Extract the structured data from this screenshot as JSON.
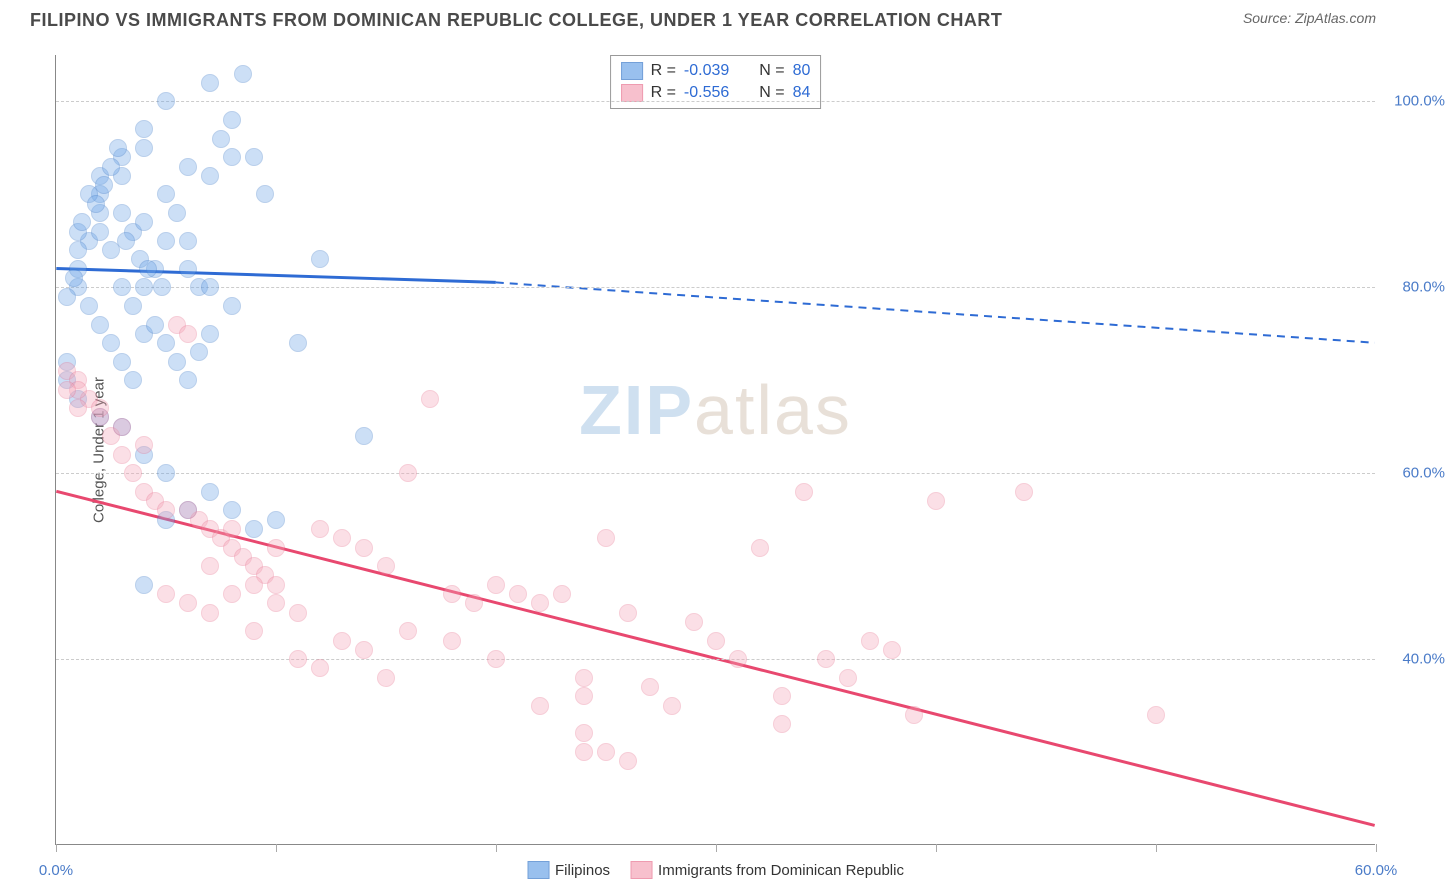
{
  "title": "FILIPINO VS IMMIGRANTS FROM DOMINICAN REPUBLIC COLLEGE, UNDER 1 YEAR CORRELATION CHART",
  "source_label": "Source: ",
  "source_value": "ZipAtlas.com",
  "ylabel": "College, Under 1 year",
  "watermark_a": "ZIP",
  "watermark_b": "atlas",
  "watermark_color_a": "#cfe0f0",
  "watermark_color_b": "#e8e0d8",
  "chart": {
    "type": "scatter",
    "xlim": [
      0,
      60
    ],
    "ylim": [
      20,
      105
    ],
    "xticks": [
      0,
      10,
      20,
      30,
      40,
      50,
      60
    ],
    "xtick_labels": [
      "0.0%",
      "",
      "",
      "",
      "",
      "",
      "60.0%"
    ],
    "yticks": [
      40,
      60,
      80,
      100
    ],
    "ytick_labels": [
      "40.0%",
      "60.0%",
      "80.0%",
      "100.0%"
    ],
    "background": "#ffffff",
    "grid_color": "#cccccc",
    "axis_color": "#888888",
    "tick_label_color": "#4a7bc8",
    "marker_radius": 9,
    "marker_opacity": 0.35,
    "series": [
      {
        "name": "Filipinos",
        "fill": "#6ea6e8",
        "stroke": "#3a78c8",
        "line_color": "#2e6bd4",
        "r_value": "-0.039",
        "n_value": "80",
        "trend": {
          "x1": 0,
          "y1": 82,
          "x2_solid": 20,
          "y2_solid": 80.5,
          "x2": 60,
          "y2": 74
        },
        "points": [
          [
            1,
            82
          ],
          [
            1.5,
            85
          ],
          [
            2,
            88
          ],
          [
            2,
            90
          ],
          [
            2.5,
            84
          ],
          [
            3,
            92
          ],
          [
            3,
            94
          ],
          [
            3.5,
            86
          ],
          [
            4,
            95
          ],
          [
            4,
            97
          ],
          [
            4.5,
            82
          ],
          [
            5,
            90
          ],
          [
            5,
            100
          ],
          [
            5.5,
            88
          ],
          [
            6,
            93
          ],
          [
            6,
            85
          ],
          [
            6.5,
            80
          ],
          [
            7,
            92
          ],
          [
            7,
            102
          ],
          [
            7.5,
            96
          ],
          [
            8,
            98
          ],
          [
            8,
            78
          ],
          [
            1,
            80
          ],
          [
            1.5,
            78
          ],
          [
            2,
            76
          ],
          [
            2.5,
            74
          ],
          [
            3,
            72
          ],
          [
            3.5,
            70
          ],
          [
            4,
            75
          ],
          [
            0.5,
            72
          ],
          [
            0.5,
            70
          ],
          [
            1,
            86
          ],
          [
            1.5,
            90
          ],
          [
            2,
            92
          ],
          [
            2.5,
            93
          ],
          [
            3,
            80
          ],
          [
            3.5,
            78
          ],
          [
            4,
            80
          ],
          [
            4.5,
            76
          ],
          [
            5,
            74
          ],
          [
            5.5,
            72
          ],
          [
            6,
            70
          ],
          [
            6.5,
            73
          ],
          [
            7,
            75
          ],
          [
            1,
            84
          ],
          [
            2,
            86
          ],
          [
            3,
            88
          ],
          [
            4,
            87
          ],
          [
            5,
            85
          ],
          [
            6,
            82
          ],
          [
            7,
            80
          ],
          [
            8,
            94
          ],
          [
            8.5,
            103
          ],
          [
            9,
            94
          ],
          [
            9.5,
            90
          ],
          [
            4,
            48
          ],
          [
            5,
            55
          ],
          [
            6,
            56
          ],
          [
            7,
            58
          ],
          [
            8,
            56
          ],
          [
            9,
            54
          ],
          [
            10,
            55
          ],
          [
            11,
            74
          ],
          [
            12,
            83
          ],
          [
            3,
            65
          ],
          [
            4,
            62
          ],
          [
            5,
            60
          ],
          [
            14,
            64
          ],
          [
            1,
            68
          ],
          [
            2,
            66
          ],
          [
            0.5,
            79
          ],
          [
            0.8,
            81
          ],
          [
            1.2,
            87
          ],
          [
            1.8,
            89
          ],
          [
            2.2,
            91
          ],
          [
            2.8,
            95
          ],
          [
            3.2,
            85
          ],
          [
            3.8,
            83
          ],
          [
            4.2,
            82
          ],
          [
            4.8,
            80
          ]
        ]
      },
      {
        "name": "Immigrants from Dominican Republic",
        "fill": "#f5a6b8",
        "stroke": "#e8718f",
        "line_color": "#e8486f",
        "r_value": "-0.556",
        "n_value": "84",
        "trend": {
          "x1": 0,
          "y1": 58,
          "x2_solid": 60,
          "y2_solid": 22,
          "x2": 60,
          "y2": 22
        },
        "points": [
          [
            0.5,
            71
          ],
          [
            1,
            70
          ],
          [
            1.5,
            68
          ],
          [
            2,
            66
          ],
          [
            2.5,
            64
          ],
          [
            3,
            62
          ],
          [
            3.5,
            60
          ],
          [
            4,
            58
          ],
          [
            4.5,
            57
          ],
          [
            5,
            56
          ],
          [
            5.5,
            76
          ],
          [
            6,
            75
          ],
          [
            6.5,
            55
          ],
          [
            7,
            54
          ],
          [
            7.5,
            53
          ],
          [
            8,
            52
          ],
          [
            8.5,
            51
          ],
          [
            9,
            50
          ],
          [
            9.5,
            49
          ],
          [
            10,
            48
          ],
          [
            5,
            47
          ],
          [
            6,
            46
          ],
          [
            7,
            45
          ],
          [
            8,
            47
          ],
          [
            9,
            48
          ],
          [
            10,
            46
          ],
          [
            11,
            45
          ],
          [
            12,
            54
          ],
          [
            13,
            53
          ],
          [
            14,
            52
          ],
          [
            15,
            50
          ],
          [
            16,
            60
          ],
          [
            17,
            68
          ],
          [
            18,
            47
          ],
          [
            19,
            46
          ],
          [
            20,
            48
          ],
          [
            21,
            47
          ],
          [
            22,
            46
          ],
          [
            23,
            47
          ],
          [
            24,
            36
          ],
          [
            24,
            38
          ],
          [
            25,
            30
          ],
          [
            25,
            53
          ],
          [
            26,
            45
          ],
          [
            27,
            37
          ],
          [
            28,
            35
          ],
          [
            29,
            44
          ],
          [
            30,
            42
          ],
          [
            31,
            40
          ],
          [
            32,
            52
          ],
          [
            33,
            36
          ],
          [
            34,
            58
          ],
          [
            35,
            40
          ],
          [
            36,
            38
          ],
          [
            37,
            42
          ],
          [
            38,
            41
          ],
          [
            39,
            34
          ],
          [
            40,
            57
          ],
          [
            12,
            39
          ],
          [
            14,
            41
          ],
          [
            16,
            43
          ],
          [
            18,
            42
          ],
          [
            10,
            52
          ],
          [
            8,
            54
          ],
          [
            6,
            56
          ],
          [
            4,
            63
          ],
          [
            3,
            65
          ],
          [
            2,
            67
          ],
          [
            1,
            69
          ],
          [
            50,
            34
          ],
          [
            15,
            38
          ],
          [
            20,
            40
          ],
          [
            22,
            35
          ],
          [
            26,
            29
          ],
          [
            24,
            30
          ],
          [
            24,
            32
          ],
          [
            11,
            40
          ],
          [
            13,
            42
          ],
          [
            9,
            43
          ],
          [
            7,
            50
          ],
          [
            0.5,
            69
          ],
          [
            1,
            67
          ],
          [
            44,
            58
          ],
          [
            33,
            33
          ]
        ]
      }
    ]
  },
  "legend_top": {
    "r_label": "R =",
    "n_label": "N ="
  },
  "legend_bottom": [
    {
      "label": "Filipinos",
      "series_idx": 0
    },
    {
      "label": "Immigrants from Dominican Republic",
      "series_idx": 1
    }
  ]
}
